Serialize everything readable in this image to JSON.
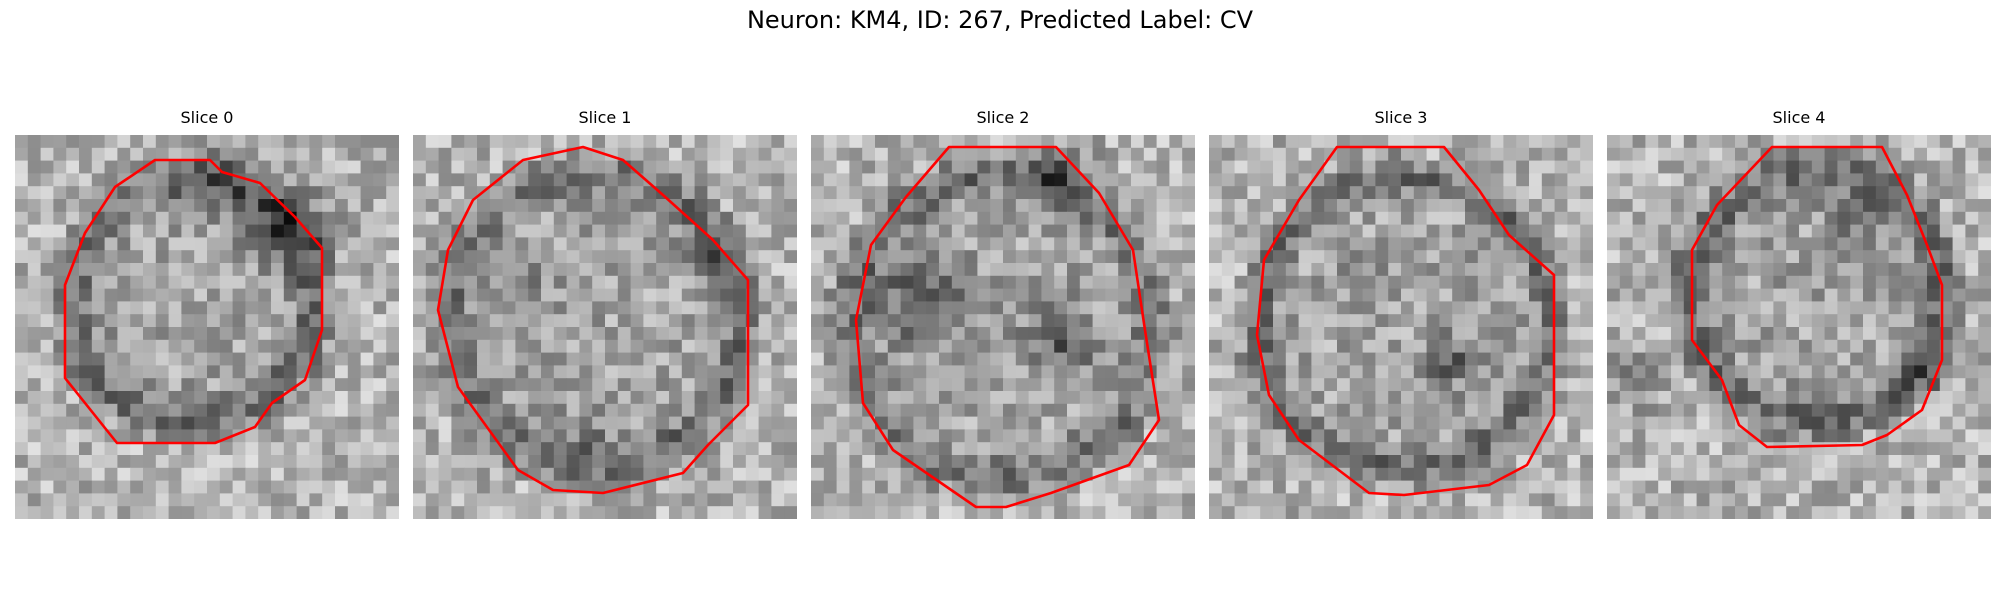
{
  "figure": {
    "title": "Neuron: KM4, ID: 267, Predicted Label: CV"
  },
  "panels": [
    {
      "title": "Slice 0"
    },
    {
      "title": "Slice 1"
    },
    {
      "title": "Slice 2"
    },
    {
      "title": "Slice 3"
    },
    {
      "title": "Slice 4"
    }
  ],
  "colors": {
    "contour": "#ff0000",
    "background": "#ffffff"
  }
}
